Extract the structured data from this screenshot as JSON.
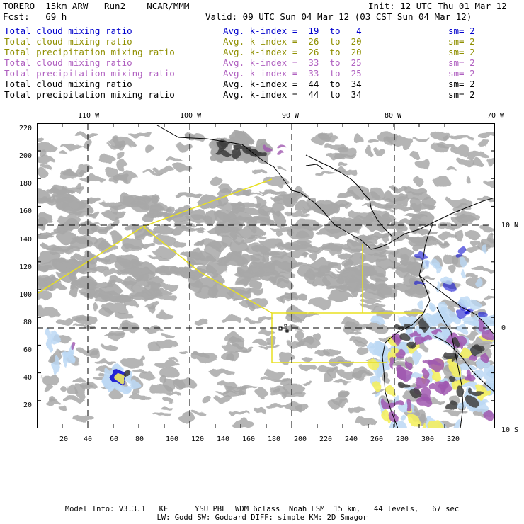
{
  "header": {
    "model": "TORERO  15km ARW   Run2    NCAR/MMM",
    "init": "Init: 12 UTC Thu 01 Mar 12",
    "fcst": "Fcst:   69 h",
    "valid": "Valid: 09 UTC Sun 04 Mar 12 (03 CST Sun 04 Mar 12)"
  },
  "legend": [
    {
      "label": "Total cloud mixing ratio",
      "kidx": "Avg. k-index =  19  to   4",
      "sm": "sm= 2",
      "color": "#0000cc"
    },
    {
      "label": "Total cloud mixing ratio",
      "kidx": "Avg. k-index =  26  to  20",
      "sm": "sm= 2",
      "color": "#8f8f00"
    },
    {
      "label": "Total precipitation mixing ratio",
      "kidx": "Avg. k-index =  26  to  20",
      "sm": "sm= 2",
      "color": "#8f8f00"
    },
    {
      "label": "Total cloud mixing ratio",
      "kidx": "Avg. k-index =  33  to  25",
      "sm": "sm= 2",
      "color": "#b060c0"
    },
    {
      "label": "Total precipitation mixing ratio",
      "kidx": "Avg. k-index =  33  to  25",
      "sm": "sm= 2",
      "color": "#b060c0"
    },
    {
      "label": "Total cloud mixing ratio",
      "kidx": "Avg. k-index =  44  to  34",
      "sm": "sm= 2",
      "color": "#000000"
    },
    {
      "label": "Total precipitation mixing ratio",
      "kidx": "Avg. k-index =  44  to  34",
      "sm": "sm= 2",
      "color": "#000000"
    }
  ],
  "axes": {
    "lon_labels": [
      "110 W",
      "100 W",
      "90 W",
      "80 W",
      "70 W"
    ],
    "lat_labels": [
      "10 N",
      "0",
      "10 S"
    ],
    "y_ticks": [
      "220",
      "200",
      "180",
      "160",
      "140",
      "120",
      "100",
      "80",
      "60",
      "40",
      "20"
    ],
    "x_ticks": [
      "20",
      "40",
      "60",
      "80",
      "100",
      "120",
      "140",
      "160",
      "180",
      "200",
      "220",
      "240",
      "260",
      "280",
      "300",
      "320"
    ]
  },
  "footer": {
    "line1": "Model Info: V3.3.1   KF      YSU PBL  WDM 6class  Noah LSM  15 km,   44 levels,   67 sec",
    "line2": "LW: Godd SW: Goddard DIFF: simple KM: 2D Smagor"
  },
  "colors": {
    "cloud_gray": "#a8a8a8",
    "dark_core": "#404040",
    "light_blue": "#bcd8f4",
    "deep_blue": "#1010d0",
    "yellow": "#f4f060",
    "purple": "#a058b0",
    "box_line": "#e8e020",
    "coast": "#000000"
  }
}
